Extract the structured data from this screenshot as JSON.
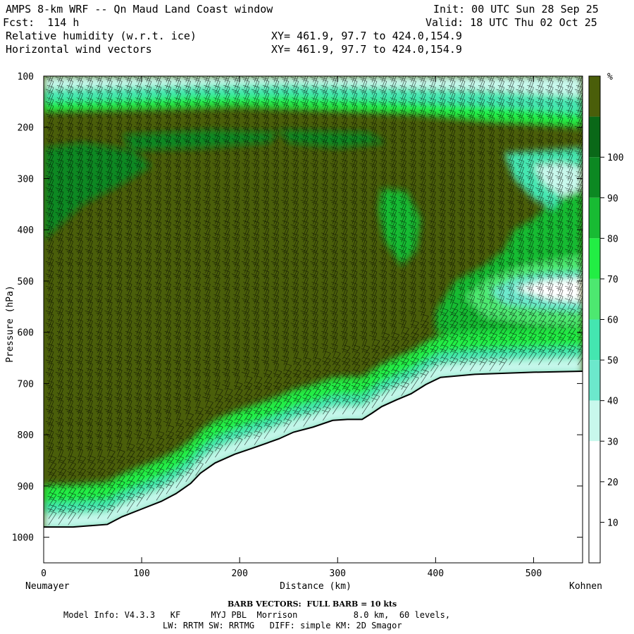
{
  "header": {
    "title": "AMPS 8-km WRF -- Qn Maud Land Coast window",
    "init": "Init: 00 UTC Sun 28 Sep 25",
    "fcst": "Fcst:  114 h",
    "valid": "Valid: 18 UTC Thu 02 Oct 25",
    "field1": "Relative humidity (w.r.t. ice)",
    "field1_xy": "XY= 461.9, 97.7 to 424.0,154.9",
    "field2": "Horizontal wind vectors",
    "field2_xy": "XY= 461.9, 97.7 to 424.0,154.9"
  },
  "footer": {
    "barb": "BARB VECTORS:  FULL BARB = 10 kts",
    "model_line1": "Model Info: V4.3.3   KF      MYJ PBL  Morrison           8.0 km,  60 levels,",
    "model_line2": "LW: RRTM SW: RRTMG   DIFF: simple KM: 2D Smagor"
  },
  "chart_data": {
    "type": "heatmap",
    "title": "Relative humidity (w.r.t. ice) cross-section, Neumayer to Kohnen",
    "xlabel": "Distance (km)",
    "ylabel": "Pressure (hPa)",
    "x_start_label": "Neumayer",
    "x_end_label": "Kohnen",
    "xlim": [
      0,
      550
    ],
    "ylim": [
      100,
      1050
    ],
    "x_ticks": [
      0,
      100,
      200,
      300,
      400,
      500
    ],
    "y_ticks": [
      100,
      200,
      300,
      400,
      500,
      600,
      700,
      800,
      900,
      1000
    ],
    "colorbar_unit": "%",
    "colorbar_ticks": [
      10,
      20,
      30,
      40,
      50,
      60,
      70,
      80,
      90,
      100
    ],
    "levels": [
      0,
      10,
      20,
      30,
      40,
      50,
      60,
      70,
      80,
      90,
      100,
      110
    ],
    "level_colors": [
      "#ffffff",
      "#ffffff",
      "#ffffff",
      "#c8f8ec",
      "#6ce8cc",
      "#44e6b0",
      "#4de870",
      "#22ee44",
      "#18bb33",
      "#0c8822",
      "#0a6818",
      "#4a5e0a"
    ],
    "terrain_surface_hPa": [
      {
        "x": 0,
        "p": 980
      },
      {
        "x": 30,
        "p": 980
      },
      {
        "x": 65,
        "p": 975
      },
      {
        "x": 80,
        "p": 960
      },
      {
        "x": 100,
        "p": 945
      },
      {
        "x": 120,
        "p": 930
      },
      {
        "x": 135,
        "p": 915
      },
      {
        "x": 150,
        "p": 895
      },
      {
        "x": 160,
        "p": 875
      },
      {
        "x": 175,
        "p": 855
      },
      {
        "x": 195,
        "p": 838
      },
      {
        "x": 215,
        "p": 825
      },
      {
        "x": 240,
        "p": 808
      },
      {
        "x": 255,
        "p": 795
      },
      {
        "x": 275,
        "p": 785
      },
      {
        "x": 295,
        "p": 772
      },
      {
        "x": 310,
        "p": 770
      },
      {
        "x": 325,
        "p": 770
      },
      {
        "x": 335,
        "p": 758
      },
      {
        "x": 345,
        "p": 745
      },
      {
        "x": 360,
        "p": 732
      },
      {
        "x": 375,
        "p": 720
      },
      {
        "x": 390,
        "p": 702
      },
      {
        "x": 405,
        "p": 688
      },
      {
        "x": 440,
        "p": 682
      },
      {
        "x": 500,
        "p": 678
      },
      {
        "x": 550,
        "p": 676
      }
    ],
    "wind_barb_spacing_km": 10
  }
}
